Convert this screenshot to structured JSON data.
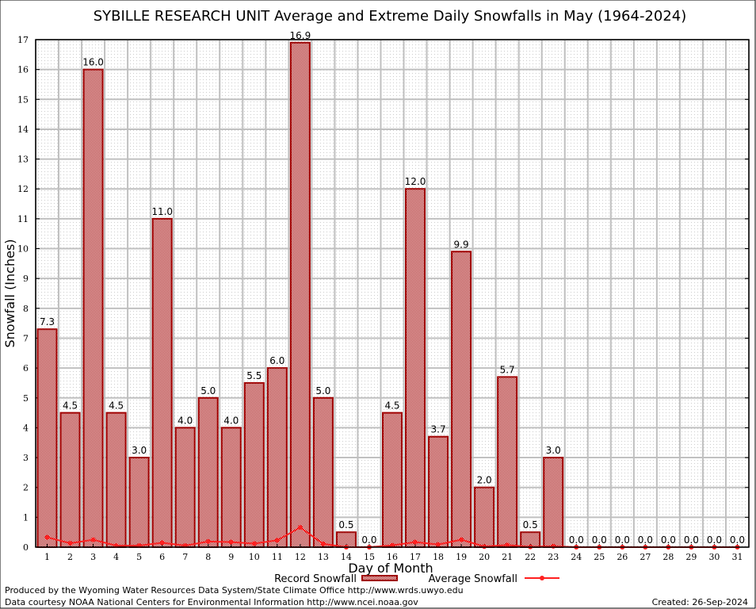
{
  "chart_data": {
    "type": "bar",
    "title": "SYBILLE RESEARCH UNIT Average and Extreme Daily Snowfalls in May (1964-2024)",
    "xlabel": "Day of Month",
    "ylabel": "Snowfall (Inches)",
    "ylim": [
      0,
      17
    ],
    "grid": true,
    "legend_placement": "bottom",
    "categories": [
      "1",
      "2",
      "3",
      "4",
      "5",
      "6",
      "7",
      "8",
      "9",
      "10",
      "11",
      "12",
      "13",
      "14",
      "15",
      "16",
      "17",
      "18",
      "19",
      "20",
      "21",
      "22",
      "23",
      "24",
      "25",
      "26",
      "27",
      "28",
      "29",
      "30",
      "31"
    ],
    "series": [
      {
        "name": "Record Snowfall",
        "type": "bar",
        "color": "#a00000",
        "values": [
          7.3,
          4.5,
          16.0,
          4.5,
          3.0,
          11.0,
          4.0,
          5.0,
          4.0,
          5.5,
          6.0,
          16.9,
          5.0,
          0.5,
          0.0,
          4.5,
          12.0,
          3.7,
          9.9,
          2.0,
          5.7,
          0.5,
          3.0,
          0.0,
          0.0,
          0.0,
          0.0,
          0.0,
          0.0,
          0.0,
          0.0
        ]
      },
      {
        "name": "Average Snowfall",
        "type": "line",
        "color": "#ff2020",
        "values": [
          0.33,
          0.13,
          0.25,
          0.05,
          0.05,
          0.15,
          0.05,
          0.19,
          0.17,
          0.12,
          0.23,
          0.66,
          0.11,
          0.0,
          0.0,
          0.06,
          0.17,
          0.09,
          0.25,
          0.02,
          0.07,
          0.01,
          0.03,
          0.0,
          0.0,
          0.0,
          0.0,
          0.0,
          0.0,
          0.0,
          0.0
        ]
      }
    ],
    "yticks": [
      "0",
      "1",
      "2",
      "3",
      "4",
      "5",
      "6",
      "7",
      "8",
      "9",
      "10",
      "11",
      "12",
      "13",
      "14",
      "15",
      "16",
      "17"
    ]
  },
  "footer": {
    "line1": "Produced by the Wyoming Water Resources Data System/State Climate Office http://www.wrds.uwyo.edu",
    "line2": "Data courtesy NOAA National Centers for Environmental Information http://www.ncei.noaa.gov",
    "created": "Created: 26-Sep-2024"
  }
}
